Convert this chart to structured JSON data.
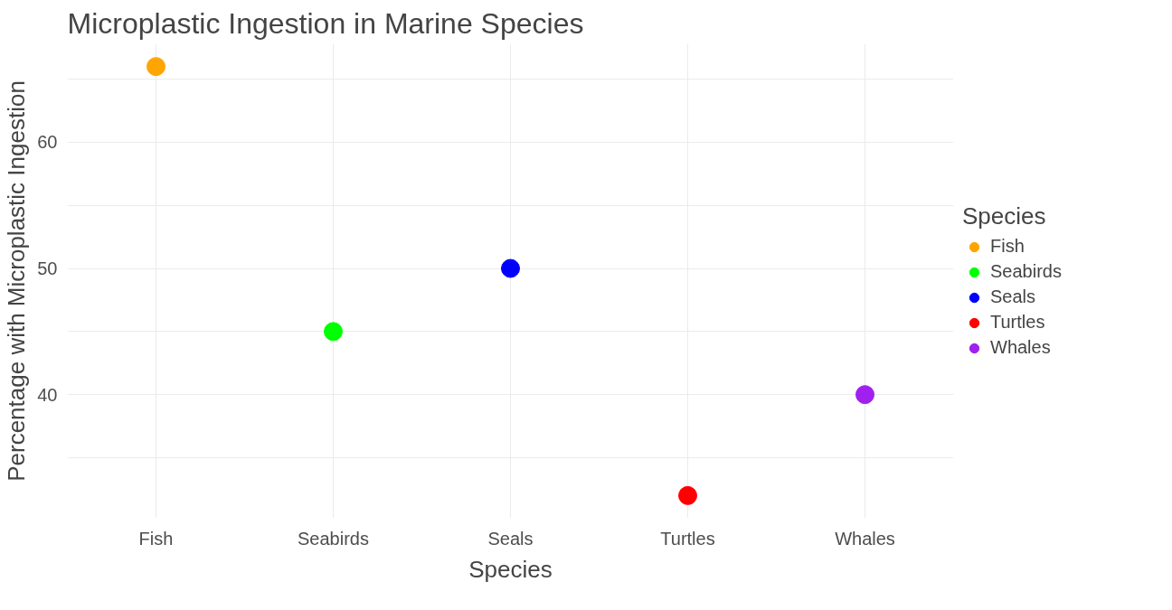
{
  "chart_data": {
    "type": "scatter",
    "title": "Microplastic Ingestion in Marine Species",
    "xlabel": "Species",
    "ylabel": "Percentage with Microplastic Ingestion",
    "legend_title": "Species",
    "categories": [
      "Fish",
      "Seabirds",
      "Seals",
      "Turtles",
      "Whales"
    ],
    "series": [
      {
        "name": "Fish",
        "color": "#ffa500",
        "x": [
          "Fish"
        ],
        "values": [
          66
        ]
      },
      {
        "name": "Seabirds",
        "color": "#00ff00",
        "x": [
          "Seabirds"
        ],
        "values": [
          45
        ]
      },
      {
        "name": "Seals",
        "color": "#0000ff",
        "x": [
          "Seals"
        ],
        "values": [
          50
        ]
      },
      {
        "name": "Turtles",
        "color": "#ff0000",
        "x": [
          "Turtles"
        ],
        "values": [
          32
        ]
      },
      {
        "name": "Whales",
        "color": "#a020f0",
        "x": [
          "Whales"
        ],
        "values": [
          40
        ]
      }
    ],
    "ylim": [
      30.2,
      67.8
    ],
    "yticks": [
      {
        "value": 35,
        "label": null
      },
      40,
      {
        "value": 45,
        "label": null
      },
      50,
      {
        "value": 55,
        "label": null
      },
      60,
      {
        "value": 65,
        "label": null
      }
    ],
    "grid": true,
    "legend": "right",
    "marker": "circle"
  }
}
